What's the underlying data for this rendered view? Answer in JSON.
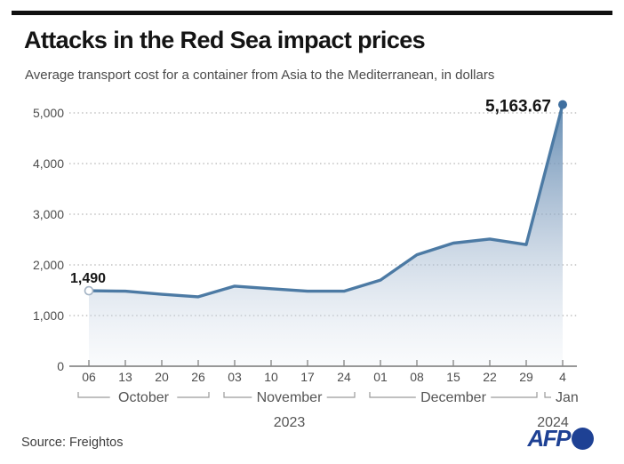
{
  "header": {
    "title": "Attacks in the Red Sea impact prices",
    "subtitle": "Average transport cost for a container from Asia to the Mediterranean, in dollars"
  },
  "footer": {
    "source": "Source: Freightos",
    "agency": "AFP",
    "agency_color": "#1e4194"
  },
  "chart_data": {
    "type": "area",
    "title": "Attacks in the Red Sea impact prices",
    "subtitle": "Average transport cost for a container from Asia to the Mediterranean, in dollars",
    "unit": "dollars",
    "x": [
      "Oct 06",
      "Oct 13",
      "Oct 20",
      "Oct 26",
      "Nov 03",
      "Nov 10",
      "Nov 17",
      "Nov 24",
      "Dec 01",
      "Dec 08",
      "Dec 15",
      "Dec 22",
      "Dec 29",
      "Jan 4"
    ],
    "x_tick_labels": [
      "06",
      "13",
      "20",
      "26",
      "03",
      "10",
      "17",
      "24",
      "01",
      "08",
      "15",
      "22",
      "29",
      "4"
    ],
    "values": [
      1490,
      1480,
      1420,
      1370,
      1580,
      1530,
      1480,
      1480,
      1700,
      2200,
      2430,
      2510,
      2400,
      5163.67
    ],
    "y_ticks": [
      0,
      1000,
      2000,
      3000,
      4000,
      5000
    ],
    "ylim": [
      0,
      5400
    ],
    "grid": "horizontal-dotted",
    "month_groups": [
      {
        "label": "October",
        "start": 0,
        "end": 3
      },
      {
        "label": "November",
        "start": 4,
        "end": 7
      },
      {
        "label": "December",
        "start": 8,
        "end": 12
      },
      {
        "label": "Jan",
        "start": 13,
        "end": 13
      }
    ],
    "year_labels": [
      {
        "text": "2023",
        "under": "November"
      },
      {
        "text": "2024",
        "under": "Jan"
      }
    ],
    "annotations": [
      {
        "index": 0,
        "text": "1,490",
        "marker": "open-circle",
        "placement": "above"
      },
      {
        "index": 13,
        "text": "5,163.67",
        "marker": "filled-circle",
        "placement": "left"
      }
    ],
    "colors": {
      "line": "#4c7aa4",
      "dot_filled": "#3f6f9f",
      "dot_open_stroke": "#a3b3c4",
      "area_top": "#5d87af",
      "area_mid": "#8fa9c6",
      "area_bottom": "#e9eef4",
      "grid": "#b5b5b5",
      "axis": "#8a8a8a",
      "bracket": "#9a9a9a",
      "label": "#4d4d4d"
    }
  }
}
